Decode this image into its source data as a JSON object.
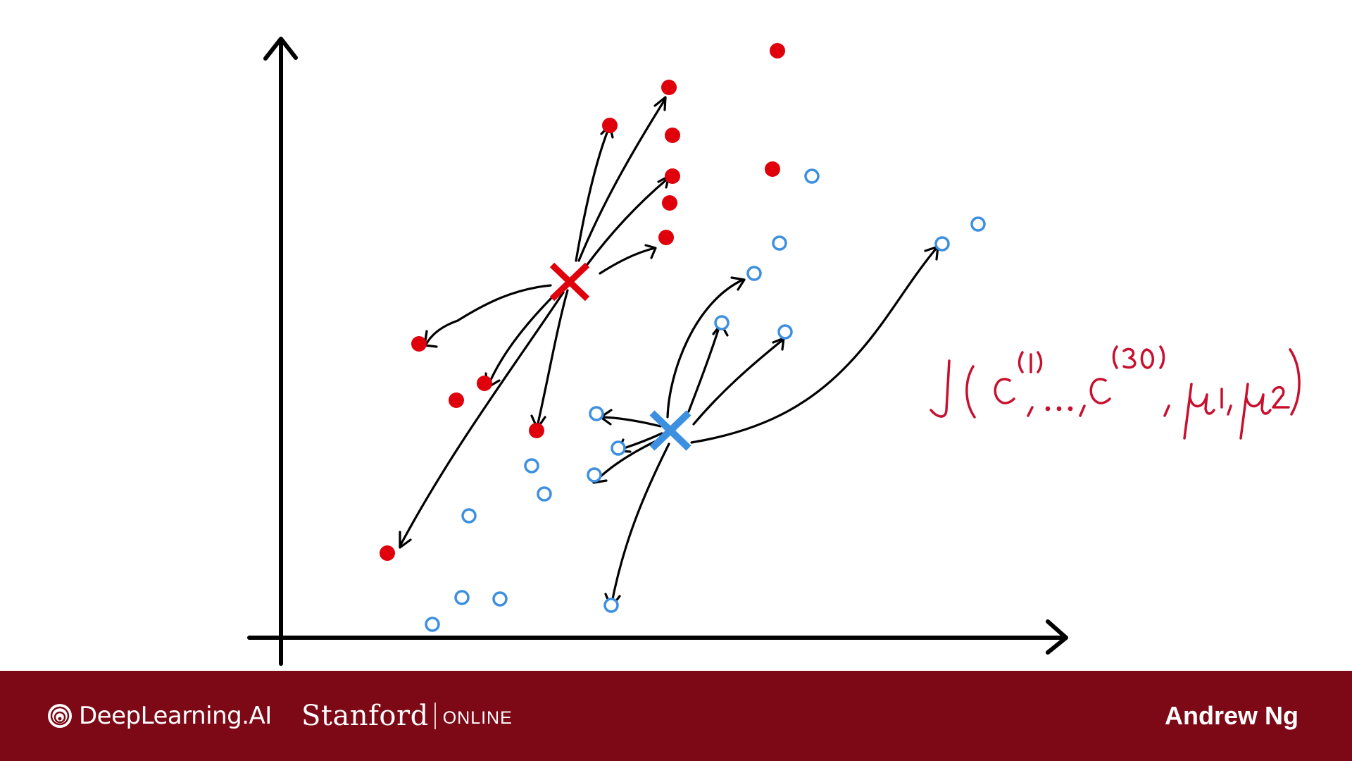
{
  "diagram": {
    "cost_function": "J(c(1),...,c(30), μ1, μ2)",
    "colors": {
      "red_points": "#e0000b",
      "blue_points": "#3d8fe0",
      "axes": "#000000",
      "arrows": "#000000",
      "handwriting": "#c8102e"
    }
  },
  "footer": {
    "brand": "DeepLearning.AI",
    "partner": "Stanford",
    "partner_suffix": "ONLINE",
    "author": "Andrew Ng",
    "background": "#7d0916"
  }
}
